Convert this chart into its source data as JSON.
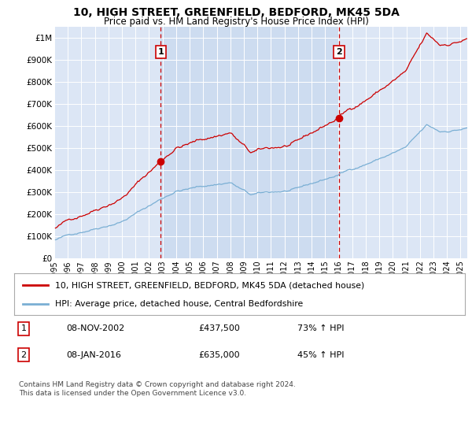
{
  "title": "10, HIGH STREET, GREENFIELD, BEDFORD, MK45 5DA",
  "subtitle": "Price paid vs. HM Land Registry's House Price Index (HPI)",
  "bg_color": "#dce6f5",
  "line1_color": "#cc0000",
  "line2_color": "#7aafd4",
  "vline_color": "#cc0000",
  "shade_color": "#cddcf0",
  "ylim": [
    0,
    1050000
  ],
  "yticks": [
    0,
    100000,
    200000,
    300000,
    400000,
    500000,
    600000,
    700000,
    800000,
    900000,
    1000000
  ],
  "ytick_labels": [
    "£0",
    "£100K",
    "£200K",
    "£300K",
    "£400K",
    "£500K",
    "£600K",
    "£700K",
    "£800K",
    "£900K",
    "£1M"
  ],
  "xlim_start": 1995.0,
  "xlim_end": 2025.5,
  "xtick_years": [
    1995,
    1996,
    1997,
    1998,
    1999,
    2000,
    2001,
    2002,
    2003,
    2004,
    2005,
    2006,
    2007,
    2008,
    2009,
    2010,
    2011,
    2012,
    2013,
    2014,
    2015,
    2016,
    2017,
    2018,
    2019,
    2020,
    2021,
    2022,
    2023,
    2024,
    2025
  ],
  "event1_x": 2002.86,
  "event1_y": 437500,
  "event1_label": "1",
  "event2_x": 2016.03,
  "event2_y": 635000,
  "event2_label": "2",
  "legend_line1": "10, HIGH STREET, GREENFIELD, BEDFORD, MK45 5DA (detached house)",
  "legend_line2": "HPI: Average price, detached house, Central Bedfordshire",
  "table_row1": [
    "1",
    "08-NOV-2002",
    "£437,500",
    "73% ↑ HPI"
  ],
  "table_row2": [
    "2",
    "08-JAN-2016",
    "£635,000",
    "45% ↑ HPI"
  ],
  "footer": "Contains HM Land Registry data © Crown copyright and database right 2024.\nThis data is licensed under the Open Government Licence v3.0."
}
